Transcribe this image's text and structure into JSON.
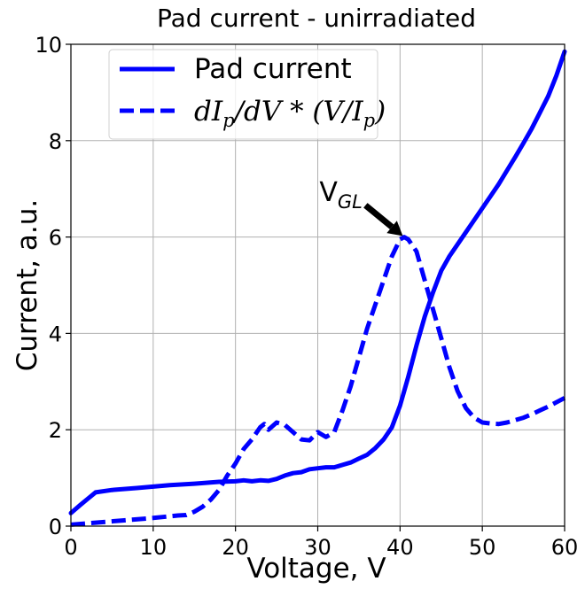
{
  "chart_data": {
    "type": "line",
    "title": "Pad current - unirradiated",
    "xlabel": "Voltage, V",
    "ylabel": "Current, a.u.",
    "xlim": [
      0,
      60
    ],
    "ylim": [
      0,
      10
    ],
    "xticks": [
      0,
      10,
      20,
      30,
      40,
      50,
      60
    ],
    "yticks": [
      0,
      2,
      4,
      6,
      8,
      10
    ],
    "grid": true,
    "legend_position": "top-left",
    "color": "#0000ff",
    "series": [
      {
        "name": "Pad current",
        "style": "solid",
        "x": [
          0,
          1,
          2,
          3,
          5,
          8,
          10,
          12,
          15,
          18,
          20,
          21,
          22,
          23,
          24,
          25,
          26,
          27,
          28,
          29,
          30,
          31,
          32,
          33,
          34,
          35,
          36,
          37,
          38,
          39,
          40,
          41,
          42,
          43,
          44,
          45,
          46,
          47,
          48,
          49,
          50,
          51,
          52,
          53,
          54,
          55,
          56,
          57,
          58,
          59,
          60
        ],
        "y": [
          0.27,
          0.42,
          0.56,
          0.7,
          0.75,
          0.79,
          0.82,
          0.85,
          0.88,
          0.92,
          0.93,
          0.95,
          0.93,
          0.95,
          0.94,
          0.98,
          1.05,
          1.1,
          1.12,
          1.18,
          1.2,
          1.22,
          1.22,
          1.27,
          1.32,
          1.4,
          1.48,
          1.62,
          1.8,
          2.05,
          2.5,
          3.1,
          3.75,
          4.35,
          4.85,
          5.3,
          5.6,
          5.85,
          6.1,
          6.35,
          6.6,
          6.85,
          7.1,
          7.38,
          7.66,
          7.95,
          8.25,
          8.58,
          8.92,
          9.35,
          9.85
        ]
      },
      {
        "name": "dI_p/dV * (V/I_p)",
        "style": "dashed",
        "x": [
          0,
          5,
          10,
          13,
          14,
          15,
          16,
          17,
          18,
          19,
          20,
          21,
          22,
          23,
          23.5,
          24,
          25,
          26,
          27,
          28,
          29,
          30,
          31,
          32,
          33,
          34,
          35,
          36,
          37,
          38,
          39,
          40,
          40.5,
          41,
          42,
          43,
          44,
          45,
          46,
          47,
          48,
          49,
          50,
          51,
          52,
          53,
          54,
          55,
          56,
          57,
          58,
          59,
          60
        ],
        "y": [
          0.03,
          0.1,
          0.17,
          0.22,
          0.23,
          0.3,
          0.4,
          0.55,
          0.75,
          1.05,
          1.3,
          1.6,
          1.8,
          2.05,
          2.12,
          2.0,
          2.15,
          2.1,
          1.95,
          1.8,
          1.78,
          1.95,
          1.85,
          1.95,
          2.4,
          2.9,
          3.5,
          4.1,
          4.6,
          5.1,
          5.6,
          5.95,
          6.0,
          5.95,
          5.7,
          5.1,
          4.5,
          3.9,
          3.3,
          2.8,
          2.45,
          2.25,
          2.15,
          2.13,
          2.12,
          2.15,
          2.2,
          2.25,
          2.32,
          2.4,
          2.48,
          2.57,
          2.66
        ]
      }
    ],
    "legend": [
      {
        "label_prefix": "Pad current"
      },
      {
        "label_math": "dI",
        "sub1": "p",
        "mid": "/dV * (V/I",
        "sub2": "p",
        "end": ")"
      }
    ],
    "annotation": {
      "text": "V",
      "subscript": "GL",
      "target_x": 40.5,
      "target_y": 6.0,
      "text_x": 30.2,
      "text_y": 6.75
    }
  }
}
